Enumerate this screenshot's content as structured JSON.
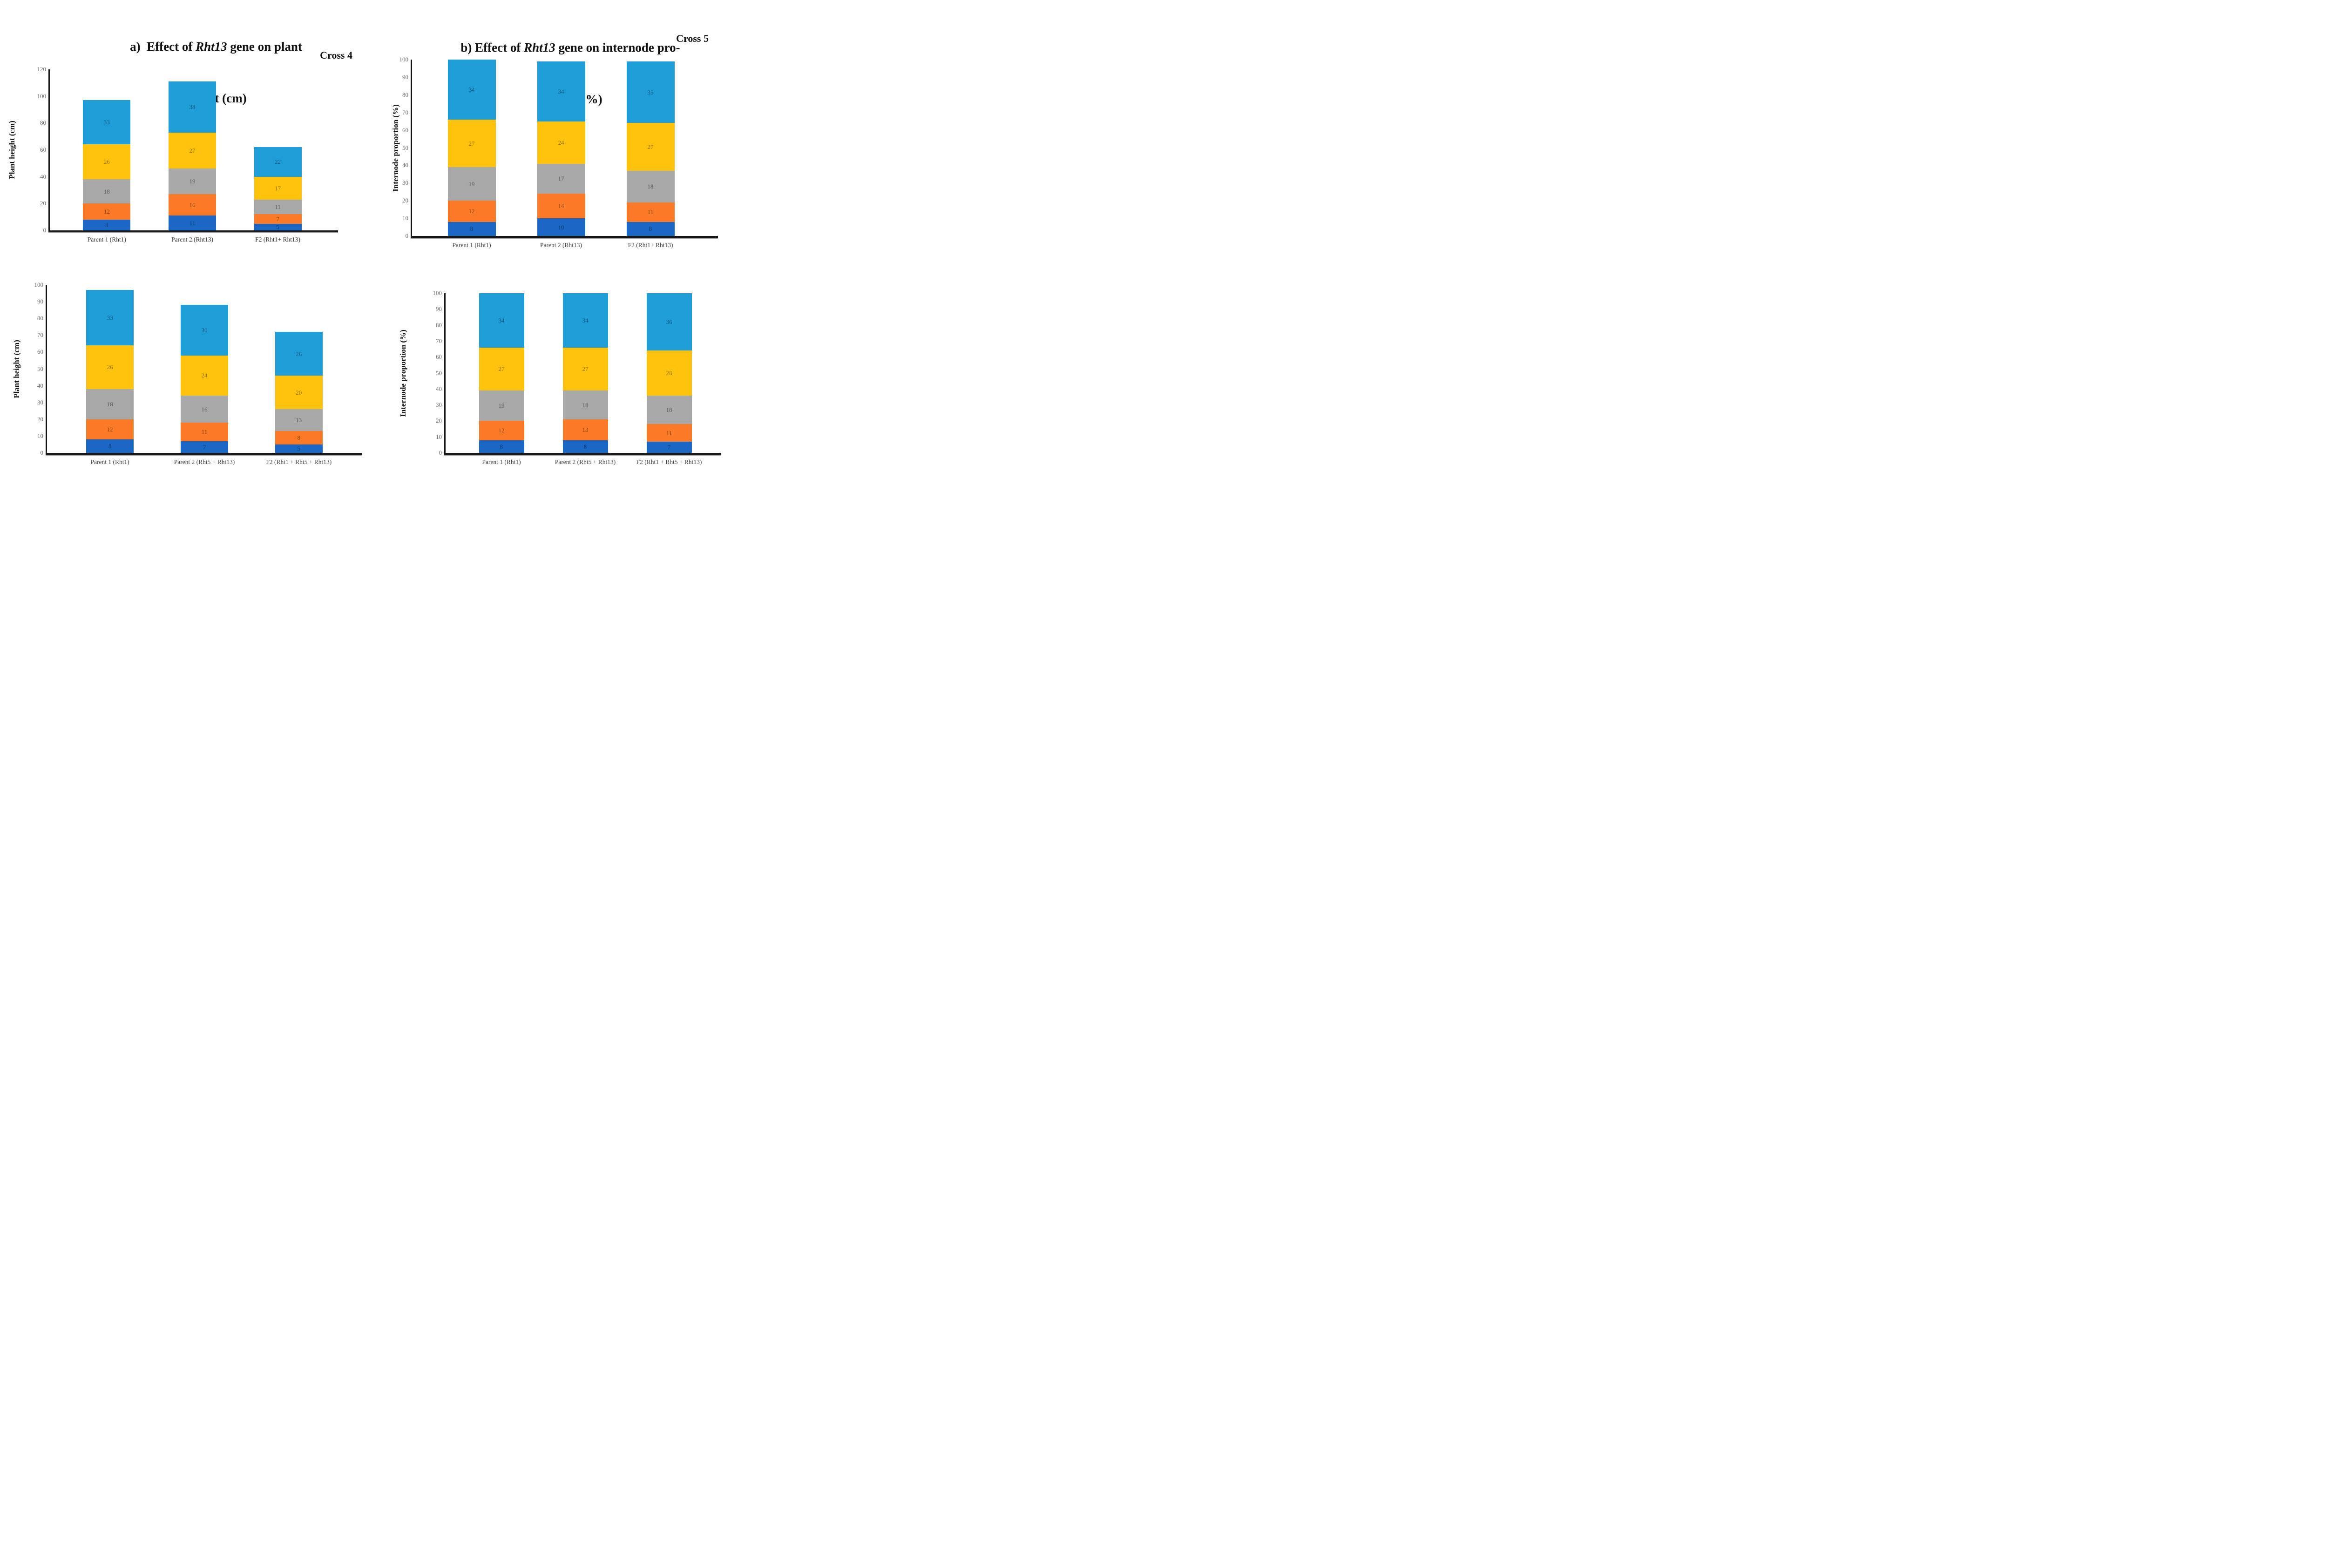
{
  "figure": {
    "background": "#ffffff",
    "titles": {
      "a": {
        "line1": [
          {
            "text": "a)  Effect of "
          },
          {
            "text": "Rht13",
            "italic": true
          },
          {
            "text": " gene on plant"
          }
        ],
        "line2": "height (cm)"
      },
      "b": {
        "line1": [
          {
            "text": "b) Effect of "
          },
          {
            "text": "Rht13",
            "italic": true
          },
          {
            "text": " gene on internode pro-"
          }
        ],
        "line2": "portion (%)"
      }
    },
    "corner_labels": {
      "top_left": "Cross 4",
      "top_right": "Cross 5"
    }
  },
  "palette": {
    "axis_line": "#161616",
    "axis_shadow": "#a0a0a0",
    "tick_label": "#6f6f6f",
    "category_label": "#3f3f3f",
    "series_colors": [
      "#1B67C6",
      "#FB7A28",
      "#A8A8A8",
      "#FFC30D",
      "#1E9DD8"
    ]
  },
  "chart_data": [
    {
      "id": "top-left",
      "type": "bar",
      "stacked": true,
      "corner_label": "Cross 4",
      "title_panel": "a",
      "xlabel": "",
      "ylabel": "Plant height (cm)",
      "ylim": [
        0,
        120
      ],
      "yticks": [
        0,
        20,
        40,
        60,
        80,
        100,
        120
      ],
      "grid": false,
      "legend": "none",
      "categories": [
        "Parent 1 (Rht1)",
        "Parent 2 (Rht13)",
        "F2 (Rht1+ Rht13)"
      ],
      "series": [
        {
          "color": "#1B67C6",
          "label_color": "#0e3a70",
          "values": [
            8,
            11,
            5
          ]
        },
        {
          "color": "#FB7A28",
          "label_color": "#8f420c",
          "values": [
            12,
            16,
            7
          ]
        },
        {
          "color": "#A8A8A8",
          "label_color": "#5c5c5c",
          "values": [
            18,
            19,
            11
          ]
        },
        {
          "color": "#FFC30D",
          "label_color": "#9a7300",
          "values": [
            26,
            27,
            17
          ]
        },
        {
          "color": "#1E9DD8",
          "label_color": "#14597f",
          "values": [
            33,
            38,
            22
          ]
        }
      ]
    },
    {
      "id": "top-right",
      "type": "bar",
      "stacked": true,
      "corner_label": "Cross 5",
      "title_panel": "b",
      "xlabel": "",
      "ylabel": "Internode proportion (%)",
      "ylim": [
        0,
        100
      ],
      "yticks": [
        0,
        10,
        20,
        30,
        40,
        50,
        60,
        70,
        80,
        90,
        100
      ],
      "grid": false,
      "legend": "none",
      "categories": [
        "Parent 1 (Rht1)",
        "Parent 2 (Rht13)",
        "F2 (Rht1+ Rht13)"
      ],
      "series": [
        {
          "color": "#1B67C6",
          "label_color": "#0e3a70",
          "values": [
            8,
            10,
            8
          ]
        },
        {
          "color": "#FB7A28",
          "label_color": "#8f420c",
          "values": [
            12,
            14,
            11
          ]
        },
        {
          "color": "#A8A8A8",
          "label_color": "#5c5c5c",
          "values": [
            19,
            17,
            18
          ]
        },
        {
          "color": "#FFC30D",
          "label_color": "#9a7300",
          "values": [
            27,
            24,
            27
          ]
        },
        {
          "color": "#1E9DD8",
          "label_color": "#14597f",
          "values": [
            34,
            34,
            35
          ]
        }
      ]
    },
    {
      "id": "bottom-left",
      "type": "bar",
      "stacked": true,
      "corner_label": "",
      "title_panel": "a",
      "xlabel": "",
      "ylabel": "Plant height (cm)",
      "ylim": [
        0,
        100
      ],
      "yticks": [
        0,
        10,
        20,
        30,
        40,
        50,
        60,
        70,
        80,
        90,
        100
      ],
      "grid": false,
      "legend": "none",
      "categories": [
        "Parent 1 (Rht1)",
        "Parent 2 (Rht5 + Rht13)",
        "F2 (Rht1 + Rht5 + Rht13)"
      ],
      "series": [
        {
          "color": "#1B67C6",
          "label_color": "#0e3a70",
          "values": [
            8,
            7,
            5
          ]
        },
        {
          "color": "#FB7A28",
          "label_color": "#8f420c",
          "values": [
            12,
            11,
            8
          ]
        },
        {
          "color": "#A8A8A8",
          "label_color": "#5c5c5c",
          "values": [
            18,
            16,
            13
          ]
        },
        {
          "color": "#FFC30D",
          "label_color": "#9a7300",
          "values": [
            26,
            24,
            20
          ]
        },
        {
          "color": "#1E9DD8",
          "label_color": "#14597f",
          "values": [
            33,
            30,
            26
          ]
        }
      ]
    },
    {
      "id": "bottom-right",
      "type": "bar",
      "stacked": true,
      "corner_label": "",
      "title_panel": "b",
      "xlabel": "",
      "ylabel": "Internode proportion (%)",
      "ylim": [
        0,
        100
      ],
      "yticks": [
        0,
        10,
        20,
        30,
        40,
        50,
        60,
        70,
        80,
        90,
        100
      ],
      "grid": false,
      "legend": "none",
      "categories": [
        "Parent 1 (Rht1)",
        "Parent 2 (Rht5 + Rht13)",
        "F2 (Rht1 + Rht5 + Rht13)"
      ],
      "series": [
        {
          "color": "#1B67C6",
          "label_color": "#0e3a70",
          "values": [
            8,
            8,
            7
          ]
        },
        {
          "color": "#FB7A28",
          "label_color": "#8f420c",
          "values": [
            12,
            13,
            11
          ]
        },
        {
          "color": "#A8A8A8",
          "label_color": "#5c5c5c",
          "values": [
            19,
            18,
            18
          ]
        },
        {
          "color": "#FFC30D",
          "label_color": "#9a7300",
          "values": [
            27,
            27,
            28
          ]
        },
        {
          "color": "#1E9DD8",
          "label_color": "#14597f",
          "values": [
            34,
            34,
            36
          ]
        }
      ]
    }
  ]
}
